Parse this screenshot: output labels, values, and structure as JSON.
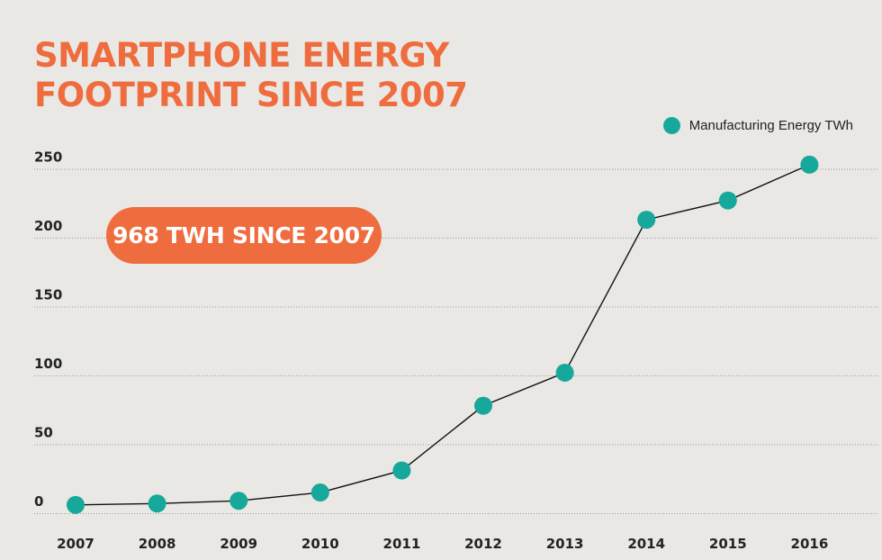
{
  "title_lines": [
    "SMARTPHONE ENERGY",
    "FOOTPRINT SINCE 2007"
  ],
  "callout": "968 TWH SINCE 2007",
  "colors": {
    "title": "#ef6c3e",
    "callout_bg": "#ef6c3e",
    "marker": "#16a89a",
    "line": "#111111",
    "grid": "#9a9a9a",
    "background": "#e9e8e4"
  },
  "chart_data": {
    "type": "line",
    "title": "SMARTPHONE ENERGY FOOTPRINT SINCE 2007",
    "xlabel": "",
    "ylabel": "",
    "categories": [
      "2007",
      "2008",
      "2009",
      "2010",
      "2011",
      "2012",
      "2013",
      "2014",
      "2015",
      "2016"
    ],
    "series": [
      {
        "name": "Manufacturing Energy TWh",
        "values": [
          6,
          7,
          9,
          15,
          31,
          78,
          102,
          213,
          227,
          253
        ]
      }
    ],
    "yticks": [
      0,
      50,
      100,
      150,
      200,
      250
    ],
    "ylim": [
      0,
      260
    ],
    "grid": "horizontal dotted",
    "legend": "top-right"
  }
}
